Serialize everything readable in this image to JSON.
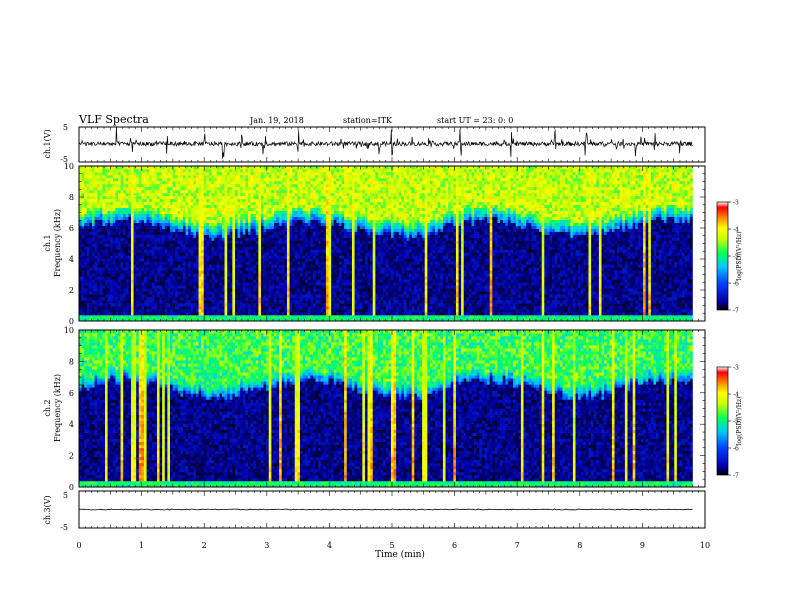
{
  "header": {
    "title": "VLF Spectra",
    "date": "Jan. 19, 2018",
    "station": "station=ITK",
    "start": "start UT = 23: 0: 0"
  },
  "colors": {
    "spectrogram": [
      "#000000",
      "#0000ff",
      "#00c8ff",
      "#00ff60",
      "#c8ff00",
      "#ffff00",
      "#ff9000",
      "#ff0000",
      "#ffffff"
    ],
    "trace": "#000000"
  },
  "chart_data": [
    {
      "type": "line",
      "panel": "ch1-waveform",
      "ylabel": "ch.1(V)",
      "ylim": [
        -5,
        5
      ],
      "yticks": [
        "5",
        "-5"
      ],
      "xlim": [
        0,
        10
      ],
      "baseline": 0.2,
      "note_bursts_ms": [
        0.6,
        0.9,
        1.4,
        2.0,
        2.3,
        2.6,
        2.95,
        3.5,
        4.8,
        5.0,
        6.1,
        6.9,
        7.6,
        8.1,
        8.9,
        9.2,
        9.6
      ]
    },
    {
      "type": "heatmap",
      "panel": "ch1-spectrogram",
      "ylabel_top": "ch.1",
      "ylabel": "Frequency (kHz)",
      "ylim": [
        0,
        10
      ],
      "yticks": [
        "0",
        "2",
        "4",
        "6",
        "8",
        "10"
      ],
      "xlim": [
        0,
        9.8
      ],
      "colorbar": {
        "label": "log(PSD)(V²/Hz)",
        "ticks": [
          "-3",
          "-4",
          "-5",
          "-6",
          "-7"
        ],
        "range": [
          -7,
          -3
        ]
      },
      "background_cutoff_khz": 6.0,
      "upper_band_level": -4.3
    },
    {
      "type": "heatmap",
      "panel": "ch2-spectrogram",
      "ylabel_top": "ch.2",
      "ylabel": "Frequency (kHz)",
      "ylim": [
        0,
        10
      ],
      "yticks": [
        "0",
        "2",
        "4",
        "6",
        "8",
        "10"
      ],
      "xlim": [
        0,
        9.8
      ],
      "colorbar": {
        "label": "log(PSD)(V²/Hz)",
        "ticks": [
          "-3",
          "-4",
          "-5",
          "-6",
          "-7"
        ],
        "range": [
          -7,
          -3
        ]
      },
      "background_cutoff_khz": 6.3,
      "upper_band_level": -4.8
    },
    {
      "type": "line",
      "panel": "ch3-waveform",
      "ylabel": "ch.3(V)",
      "ylim": [
        -5,
        5
      ],
      "yticks": [
        "5",
        "-5"
      ],
      "xlim": [
        0,
        10
      ],
      "baseline": 0.0
    }
  ],
  "xaxis": {
    "label": "Time (min)",
    "ticks": [
      "0",
      "1",
      "2",
      "3",
      "4",
      "5",
      "6",
      "7",
      "8",
      "9",
      "10"
    ],
    "range": [
      0,
      10
    ]
  }
}
